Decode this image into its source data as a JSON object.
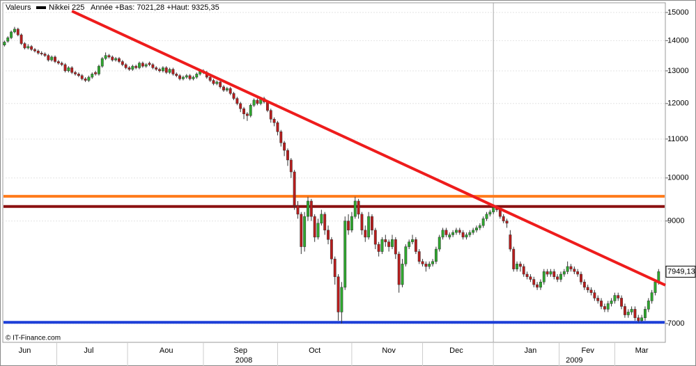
{
  "chart_data": {
    "type": "candlestick",
    "legend_title": "Valeurs",
    "series_name": "Nikkei 225",
    "series_color": "#000000",
    "range_note": "Année +Bas: 7021,28 +Haut: 9325,35",
    "source": "© IT-Finance.com",
    "up_color": "#2ea82e",
    "down_color": "#b81c1c",
    "log_scale": true,
    "grid": true,
    "ylim": [
      6685,
      15360
    ],
    "yticks": [
      7000,
      9000,
      10000,
      11000,
      12000,
      13000,
      14000,
      15000
    ],
    "xlim": [
      -0.5,
      196
    ],
    "xticks": [
      {
        "value": 6,
        "label": "Jun"
      },
      {
        "value": 25,
        "label": "Jul"
      },
      {
        "value": 48,
        "label": "Aou"
      },
      {
        "value": 70,
        "label": "Sep"
      },
      {
        "value": 92,
        "label": "Oct"
      },
      {
        "value": 114,
        "label": "Nov"
      },
      {
        "value": 134,
        "label": "Dec"
      },
      {
        "value": 156,
        "label": "Jan"
      },
      {
        "value": 173,
        "label": "Fev"
      },
      {
        "value": 189,
        "label": "Mar"
      }
    ],
    "year_ticks": [
      {
        "value": 71,
        "label": "2008"
      },
      {
        "value": 169,
        "label": "2009"
      }
    ],
    "open": [
      13850,
      13980,
      14100,
      14300,
      14400,
      14200,
      13900,
      13750,
      13800,
      13700,
      13650,
      13580,
      13550,
      13500,
      13350,
      13450,
      13300,
      13250,
      13200,
      13000,
      13100,
      12950,
      12900,
      12850,
      12750,
      12700,
      12800,
      12950,
      12900,
      13150,
      13400,
      13500,
      13450,
      13350,
      13400,
      13300,
      13200,
      13100,
      13050,
      13150,
      13100,
      13250,
      13150,
      13250,
      13200,
      13100,
      13050,
      13000,
      13100,
      12950,
      13050,
      12900,
      12850,
      12750,
      12800,
      12850,
      12750,
      12800,
      12900,
      13000,
      12950,
      12800,
      12700,
      12600,
      12650,
      12500,
      12400,
      12450,
      12300,
      12150,
      12000,
      11850,
      11700,
      11650,
      11950,
      12100,
      12000,
      12150,
      12050,
      11800,
      11550,
      11450,
      11200,
      10900,
      10700,
      10450,
      10150,
      9350,
      9150,
      8450,
      9100,
      9450,
      9100,
      8650,
      8950,
      9150,
      8800,
      8600,
      8200,
      7850,
      7200,
      7650,
      9000,
      8800,
      9100,
      9450,
      9150,
      8800,
      8650,
      9100,
      8800,
      8500,
      8350,
      8600,
      8550,
      8450,
      8600,
      8300,
      7700,
      8100,
      8450,
      8550,
      8600,
      8350,
      8150,
      8100,
      8050,
      8100,
      8150,
      8400,
      8650,
      8800,
      8650,
      8700,
      8750,
      8800,
      8750,
      8650,
      8700,
      8750,
      8800,
      8850,
      8900,
      9050,
      9150,
      9200,
      9300,
      9250,
      9100,
      9000,
      8700,
      8400,
      8000,
      8100,
      8050,
      7900,
      7850,
      7800,
      7700,
      7650,
      7750,
      7950,
      7900,
      7950,
      7850,
      7800,
      7900,
      7950,
      8050,
      8000,
      7950,
      7900,
      7750,
      7650,
      7600,
      7550,
      7450,
      7400,
      7300,
      7250,
      7350,
      7400,
      7500,
      7450,
      7300,
      7150,
      7200,
      7250,
      7100,
      7050,
      7100,
      7250,
      7400,
      7550,
      7750
    ],
    "high": [
      14000,
      14150,
      14350,
      14480,
      14450,
      14250,
      13950,
      13880,
      13850,
      13750,
      13700,
      13640,
      13600,
      13550,
      13500,
      13500,
      13350,
      13300,
      13250,
      13150,
      13150,
      13000,
      12950,
      12900,
      12800,
      12850,
      12950,
      13000,
      13200,
      13450,
      13600,
      13550,
      13500,
      13450,
      13450,
      13350,
      13250,
      13150,
      13200,
      13200,
      13300,
      13300,
      13250,
      13300,
      13250,
      13150,
      13100,
      13150,
      13150,
      13100,
      13100,
      12950,
      12900,
      12850,
      12900,
      12900,
      12850,
      12950,
      13050,
      13050,
      13000,
      12850,
      12750,
      12700,
      12700,
      12550,
      12500,
      12500,
      12350,
      12200,
      12050,
      11900,
      11750,
      12000,
      12150,
      12150,
      12200,
      12200,
      12100,
      11850,
      11600,
      11500,
      11250,
      10950,
      10750,
      10500,
      10200,
      9450,
      9200,
      9200,
      9550,
      9500,
      9150,
      9050,
      9250,
      9200,
      8900,
      8650,
      8250,
      7900,
      7750,
      9100,
      9150,
      9200,
      9550,
      9500,
      9200,
      8900,
      9200,
      9150,
      8850,
      8550,
      8650,
      8700,
      8600,
      8700,
      8650,
      8350,
      8200,
      8500,
      8600,
      8700,
      8650,
      8400,
      8200,
      8150,
      8150,
      8200,
      8450,
      8700,
      8850,
      8850,
      8750,
      8800,
      8850,
      8850,
      8800,
      8750,
      8800,
      8850,
      8900,
      8950,
      9100,
      9200,
      9250,
      9330,
      9320,
      9300,
      9150,
      9050,
      8800,
      8450,
      8150,
      8150,
      8100,
      7950,
      7900,
      7850,
      7750,
      7800,
      8000,
      8000,
      8000,
      8000,
      7900,
      7950,
      8000,
      8150,
      8100,
      8050,
      8000,
      7950,
      7800,
      7700,
      7650,
      7600,
      7500,
      7450,
      7350,
      7400,
      7450,
      7550,
      7550,
      7500,
      7350,
      7250,
      7300,
      7300,
      7150,
      7150,
      7300,
      7450,
      7600,
      7800,
      8000
    ],
    "low": [
      13800,
      13930,
      14050,
      14250,
      14150,
      13850,
      13700,
      13700,
      13650,
      13600,
      13530,
      13500,
      13450,
      13300,
      13300,
      13250,
      13200,
      13150,
      12950,
      12950,
      12900,
      12850,
      12800,
      12700,
      12650,
      12650,
      12750,
      12850,
      12850,
      13100,
      13350,
      13400,
      13300,
      13300,
      13250,
      13150,
      13050,
      13000,
      13000,
      13050,
      13050,
      13100,
      13100,
      13150,
      13050,
      13000,
      12950,
      12950,
      12900,
      12900,
      12850,
      12800,
      12700,
      12700,
      12750,
      12700,
      12700,
      12750,
      12850,
      12900,
      12750,
      12650,
      12550,
      12550,
      12450,
      12350,
      12350,
      12250,
      12100,
      11950,
      11750,
      11550,
      11500,
      11600,
      11900,
      11950,
      11950,
      12000,
      11750,
      11450,
      11350,
      11100,
      10800,
      10550,
      10300,
      10000,
      9250,
      9050,
      8300,
      8350,
      9000,
      9000,
      8550,
      8600,
      8900,
      8700,
      8500,
      8100,
      7700,
      7050,
      7000,
      7600,
      8700,
      8750,
      9050,
      9050,
      8700,
      8550,
      8600,
      8700,
      8400,
      8250,
      8300,
      8450,
      8350,
      8400,
      8200,
      7550,
      7650,
      8050,
      8400,
      8500,
      8300,
      8100,
      8050,
      7950,
      8000,
      8050,
      8100,
      8350,
      8600,
      8650,
      8600,
      8650,
      8700,
      8700,
      8600,
      8600,
      8650,
      8700,
      8750,
      8800,
      8850,
      9000,
      9100,
      9150,
      9200,
      9050,
      8950,
      8850,
      8350,
      7950,
      7950,
      7950,
      7850,
      7800,
      7750,
      7650,
      7600,
      7600,
      7700,
      7850,
      7850,
      7800,
      7750,
      7750,
      7850,
      7900,
      7950,
      7900,
      7850,
      7700,
      7600,
      7550,
      7500,
      7400,
      7350,
      7250,
      7200,
      7200,
      7300,
      7350,
      7400,
      7250,
      7100,
      7100,
      7150,
      7050,
      7021.28,
      7030,
      7050,
      7200,
      7350,
      7500,
      7700
    ],
    "close": [
      13950,
      14100,
      14300,
      14400,
      14200,
      13900,
      13750,
      13800,
      13700,
      13650,
      13580,
      13550,
      13500,
      13350,
      13450,
      13300,
      13250,
      13200,
      13000,
      13100,
      12950,
      12900,
      12850,
      12750,
      12700,
      12800,
      12900,
      12900,
      13150,
      13400,
      13500,
      13450,
      13350,
      13400,
      13300,
      13200,
      13100,
      13050,
      13150,
      13100,
      13250,
      13150,
      13200,
      13200,
      13100,
      13050,
      13000,
      13100,
      12950,
      13050,
      12900,
      12850,
      12750,
      12800,
      12850,
      12750,
      12800,
      12900,
      13000,
      12950,
      12800,
      12700,
      12600,
      12650,
      12500,
      12400,
      12450,
      12300,
      12150,
      12000,
      11850,
      11700,
      11650,
      11950,
      12100,
      12000,
      12150,
      12050,
      11800,
      11550,
      11450,
      11200,
      10900,
      10700,
      10450,
      10150,
      9350,
      9150,
      8450,
      9100,
      9450,
      9100,
      8650,
      8950,
      9150,
      8800,
      8600,
      8200,
      7850,
      7200,
      7650,
      9000,
      8800,
      9100,
      9450,
      9150,
      8800,
      8650,
      9100,
      8800,
      8500,
      8350,
      8600,
      8550,
      8450,
      8600,
      8300,
      7700,
      8100,
      8450,
      8550,
      8600,
      8350,
      8150,
      8100,
      8050,
      8100,
      8150,
      8400,
      8650,
      8800,
      8700,
      8700,
      8750,
      8800,
      8750,
      8650,
      8700,
      8750,
      8800,
      8850,
      8900,
      9050,
      9150,
      9200,
      9300,
      9250,
      9100,
      9000,
      8950,
      8400,
      8000,
      8100,
      8050,
      7900,
      7850,
      7800,
      7700,
      7650,
      7750,
      7950,
      7900,
      7950,
      7850,
      7800,
      7900,
      7950,
      8050,
      8000,
      7950,
      7900,
      7750,
      7650,
      7600,
      7550,
      7450,
      7400,
      7300,
      7250,
      7350,
      7400,
      7500,
      7450,
      7300,
      7150,
      7200,
      7250,
      7100,
      7050,
      7100,
      7250,
      7400,
      7550,
      7750,
      7949.13
    ],
    "last_value_label": "7949,13",
    "levels": [
      {
        "value": 9560,
        "color": "#ff7b1c"
      },
      {
        "value": 9325.35,
        "color": "#8b1010"
      },
      {
        "value": 7021.28,
        "color": "#1d3fd8"
      }
    ],
    "trendline": {
      "x": [
        20,
        196
      ],
      "values": [
        15050,
        7690
      ],
      "color": "#ee1c1c"
    }
  }
}
